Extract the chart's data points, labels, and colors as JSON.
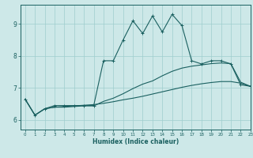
{
  "xlabel": "Humidex (Indice chaleur)",
  "bg_color": "#cde8e8",
  "line_color": "#1a6060",
  "grid_color": "#9ecece",
  "xlim": [
    -0.5,
    23
  ],
  "ylim": [
    5.7,
    9.6
  ],
  "xticks": [
    0,
    1,
    2,
    3,
    4,
    5,
    6,
    7,
    8,
    9,
    10,
    11,
    12,
    13,
    14,
    15,
    16,
    17,
    18,
    19,
    20,
    21,
    22,
    23
  ],
  "yticks": [
    6,
    7,
    8,
    9
  ],
  "line1_x": [
    0,
    1,
    2,
    3,
    4,
    5,
    6,
    7,
    8,
    9,
    10,
    11,
    12,
    13,
    14,
    15,
    16,
    17,
    18,
    19,
    20,
    21,
    22,
    23
  ],
  "line1_y": [
    6.65,
    6.15,
    6.35,
    6.45,
    6.45,
    6.45,
    6.45,
    6.45,
    7.85,
    7.85,
    8.5,
    9.1,
    8.7,
    9.25,
    8.75,
    9.3,
    8.95,
    7.85,
    7.75,
    7.85,
    7.85,
    7.75,
    7.1,
    7.05
  ],
  "line2_x": [
    0,
    1,
    2,
    3,
    4,
    5,
    6,
    7,
    8,
    9,
    10,
    11,
    12,
    13,
    14,
    15,
    16,
    17,
    18,
    19,
    20,
    21,
    22,
    23
  ],
  "line2_y": [
    6.65,
    6.15,
    6.35,
    6.4,
    6.4,
    6.42,
    6.44,
    6.44,
    6.58,
    6.68,
    6.82,
    6.98,
    7.12,
    7.22,
    7.38,
    7.52,
    7.62,
    7.68,
    7.72,
    7.76,
    7.78,
    7.76,
    7.18,
    7.05
  ],
  "line3_x": [
    0,
    1,
    2,
    3,
    4,
    5,
    6,
    7,
    8,
    9,
    10,
    11,
    12,
    13,
    14,
    15,
    16,
    17,
    18,
    19,
    20,
    21,
    22,
    23
  ],
  "line3_y": [
    6.65,
    6.15,
    6.35,
    6.4,
    6.42,
    6.44,
    6.46,
    6.48,
    6.52,
    6.57,
    6.63,
    6.68,
    6.74,
    6.81,
    6.88,
    6.95,
    7.02,
    7.08,
    7.13,
    7.17,
    7.2,
    7.2,
    7.15,
    7.05
  ]
}
